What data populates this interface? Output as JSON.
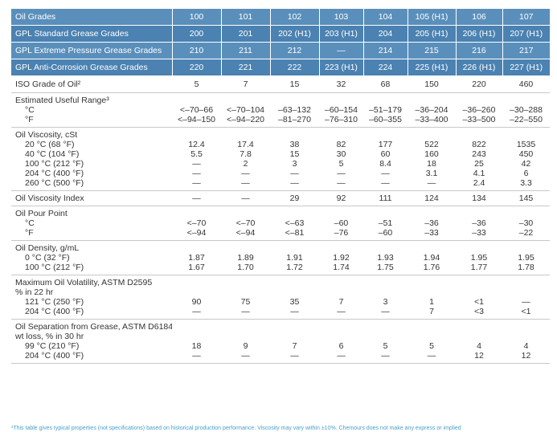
{
  "header_rows": [
    {
      "label": "Oil Grades",
      "values": [
        "100",
        "101",
        "102",
        "103",
        "104",
        "105 (H1)",
        "106",
        "107"
      ]
    },
    {
      "label": "GPL Standard Grease Grades",
      "values": [
        "200",
        "201",
        "202 (H1)",
        "203 (H1)",
        "204",
        "205 (H1)",
        "206 (H1)",
        "207 (H1)"
      ]
    },
    {
      "label": "GPL Extreme Pressure Grease Grades",
      "values": [
        "210",
        "211",
        "212",
        "—",
        "214",
        "215",
        "216",
        "217"
      ]
    },
    {
      "label": "GPL Anti-Corrosion Grease Grades",
      "values": [
        "220",
        "221",
        "222",
        "223 (H1)",
        "224",
        "225 (H1)",
        "226 (H1)",
        "227 (H1)"
      ]
    }
  ],
  "iso_row": {
    "label": "ISO Grade of Oil²",
    "values": [
      "5",
      "7",
      "15",
      "32",
      "68",
      "150",
      "220",
      "460"
    ]
  },
  "property_groups": [
    {
      "heading": "Estimated Useful Range³",
      "rows": [
        {
          "label": "°C",
          "values": [
            "<–70–66",
            "<–70–104",
            "–63–132",
            "–60–154",
            "–51–179",
            "–36–204",
            "–36–260",
            "–30–288"
          ]
        },
        {
          "label": "°F",
          "values": [
            "<–94–150",
            "<–94–220",
            "–81–270",
            "–76–310",
            "–60–355",
            "–33–400",
            "–33–500",
            "–22–550"
          ]
        }
      ]
    },
    {
      "heading": "Oil Viscosity, cSt",
      "rows": [
        {
          "label": "20 °C (68 °F)",
          "values": [
            "12.4",
            "17.4",
            "38",
            "82",
            "177",
            "522",
            "822",
            "1535"
          ]
        },
        {
          "label": "40 °C (104 °F)",
          "values": [
            "5.5",
            "7.8",
            "15",
            "30",
            "60",
            "160",
            "243",
            "450"
          ]
        },
        {
          "label": "100 °C (212 °F)",
          "values": [
            "—",
            "2",
            "3",
            "5",
            "8.4",
            "18",
            "25",
            "42"
          ]
        },
        {
          "label": "204 °C (400 °F)",
          "values": [
            "—",
            "—",
            "—",
            "—",
            "—",
            "3.1",
            "4.1",
            "6"
          ]
        },
        {
          "label": "260 °C (500 °F)",
          "values": [
            "—",
            "—",
            "—",
            "—",
            "—",
            "—",
            "2.4",
            "3.3"
          ]
        }
      ]
    },
    {
      "heading": "",
      "rows": [
        {
          "label": "Oil Viscosity Index",
          "values": [
            "—",
            "—",
            "29",
            "92",
            "111",
            "124",
            "134",
            "145"
          ]
        }
      ]
    },
    {
      "heading": "Oil Pour Point",
      "rows": [
        {
          "label": "°C",
          "values": [
            "<–70",
            "<–70",
            "<–63",
            "–60",
            "–51",
            "–36",
            "–36",
            "–30"
          ]
        },
        {
          "label": "°F",
          "values": [
            "<–94",
            "<–94",
            "<–81",
            "–76",
            "–60",
            "–33",
            "–33",
            "–22"
          ]
        }
      ]
    },
    {
      "heading": "Oil Density, g/mL",
      "rows": [
        {
          "label": "0 °C (32 °F)",
          "values": [
            "1.87",
            "1.89",
            "1.91",
            "1.92",
            "1.93",
            "1.94",
            "1.95",
            "1.95"
          ]
        },
        {
          "label": "100 °C (212 °F)",
          "values": [
            "1.67",
            "1.70",
            "1.72",
            "1.74",
            "1.75",
            "1.76",
            "1.77",
            "1.78"
          ]
        }
      ]
    },
    {
      "heading": "Maximum Oil Volatility, ASTM D2595",
      "subheading": "% in 22 hr",
      "rows": [
        {
          "label": "121 °C (250 °F)",
          "values": [
            "90",
            "75",
            "35",
            "7",
            "3",
            "1",
            "<1",
            "—"
          ]
        },
        {
          "label": "204 °C (400 °F)",
          "values": [
            "—",
            "—",
            "—",
            "—",
            "—",
            "7",
            "<3",
            "<1"
          ]
        }
      ]
    },
    {
      "heading": "Oil Separation from Grease, ASTM D6184",
      "subheading": "wt loss, % in 30 hr",
      "rows": [
        {
          "label": "99 °C (210 °F)",
          "values": [
            "18",
            "9",
            "7",
            "6",
            "5",
            "5",
            "4",
            "4"
          ]
        },
        {
          "label": "204 °C (400 °F)",
          "values": [
            "—",
            "—",
            "—",
            "—",
            "—",
            "—",
            "12",
            "12"
          ]
        }
      ]
    }
  ],
  "colors": {
    "header_dark": "#4b82b2",
    "header_light": "#5a8fbb",
    "rule": "#c8c8c8",
    "footnote": "#4a9fca"
  },
  "footnote": "¹This table gives typical properties (not specifications) based on historical production performance. Viscosity may vary within ±10%. Chemours does not make any express or implied"
}
